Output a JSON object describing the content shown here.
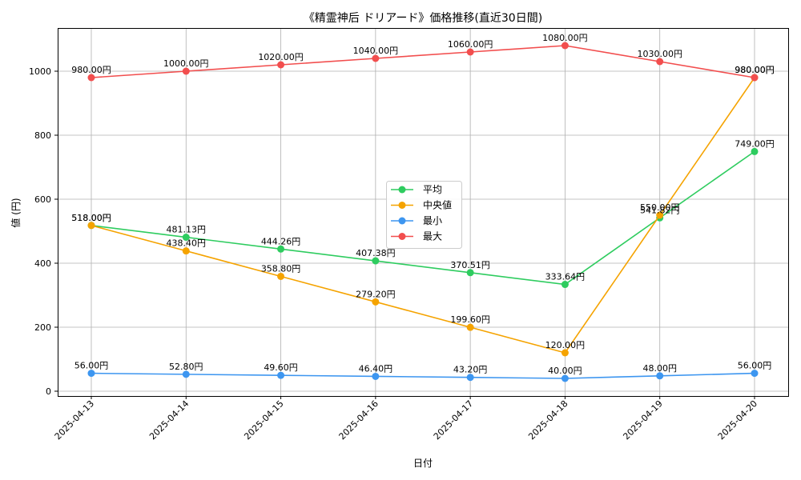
{
  "chart_data": {
    "type": "line",
    "title": "《精霊神后 ドリアード》価格推移(直近30日間)",
    "xlabel": "日付",
    "ylabel": "値 (円)",
    "categories": [
      "2025-04-13",
      "2025-04-14",
      "2025-04-15",
      "2025-04-16",
      "2025-04-17",
      "2025-04-18",
      "2025-04-19",
      "2025-04-20"
    ],
    "ylim": [
      -15,
      1135
    ],
    "yticks": [
      0,
      200,
      400,
      600,
      800,
      1000
    ],
    "grid": true,
    "legend_position": "center",
    "label_suffix": "円",
    "series": [
      {
        "name": "平均",
        "color": "#2ecc5f",
        "values": [
          518.0,
          481.13,
          444.26,
          407.38,
          370.51,
          333.64,
          541.82,
          749.0
        ]
      },
      {
        "name": "中央値",
        "color": "#f5a300",
        "values": [
          518.0,
          438.4,
          358.8,
          279.2,
          199.6,
          120.0,
          550.0,
          980.0
        ]
      },
      {
        "name": "最小",
        "color": "#3d96f0",
        "values": [
          56.0,
          52.8,
          49.6,
          46.4,
          43.2,
          40.0,
          48.0,
          56.0
        ]
      },
      {
        "name": "最大",
        "color": "#f24e4e",
        "values": [
          980.0,
          1000.0,
          1020.0,
          1040.0,
          1060.0,
          1080.0,
          1030.0,
          980.0
        ]
      }
    ]
  }
}
